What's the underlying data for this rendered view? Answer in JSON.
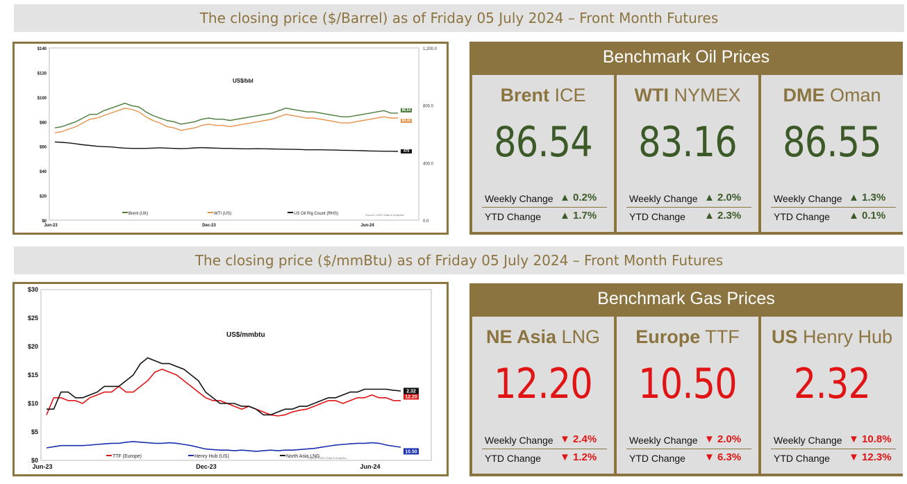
{
  "oil_banner": "The closing price ($/Barrel) as of Friday 05 July 2024 – Front Month  Futures",
  "gas_banner": "The closing price ($/mmBtu) as of Friday 05 July 2024 – Front Month  Futures",
  "oil_panel": {
    "title": "Benchmark Oil Prices",
    "tiles": [
      {
        "name_bold": "Brent",
        "name_rest": " ICE",
        "price": "86.54",
        "weekly_label": "Weekly Change",
        "weekly": "▲ 0.2%",
        "ytd_label": "YTD Change",
        "ytd": "▲ 1.7%"
      },
      {
        "name_bold": "WTI",
        "name_rest": " NYMEX",
        "price": "83.16",
        "weekly_label": "Weekly Change",
        "weekly": "▲ 2.0%",
        "ytd_label": "YTD Change",
        "ytd": "▲ 2.3%"
      },
      {
        "name_bold": "DME",
        "name_rest": " Oman",
        "price": "86.55",
        "weekly_label": "Weekly Change",
        "weekly": "▲ 1.3%",
        "ytd_label": "YTD Change",
        "ytd": "▲ 0.1%"
      }
    ]
  },
  "gas_panel": {
    "title": "Benchmark Gas Prices",
    "tiles": [
      {
        "name_bold": "NE Asia",
        "name_rest": " LNG",
        "price": "12.20",
        "weekly_label": "Weekly Change",
        "weekly": "▼ 2.4%",
        "ytd_label": "YTD Change",
        "ytd": "▼ 1.2%"
      },
      {
        "name_bold": "Europe",
        "name_rest": " TTF",
        "price": "10.50",
        "weekly_label": "Weekly Change",
        "weekly": "▼ 2.0%",
        "ytd_label": "YTD Change",
        "ytd": "▼ 6.3%"
      },
      {
        "name_bold": "US",
        "name_rest": " Henry Hub",
        "price": "2.32",
        "weekly_label": "Weekly Change",
        "weekly": "▼ 10.8%",
        "ytd_label": "YTD Change",
        "ytd": "▼ 12.3%"
      }
    ]
  },
  "chart_data": [
    {
      "type": "line",
      "title": "US$/bbl",
      "x_tick_labels": [
        "Jun-23",
        "Dec-23",
        "Jun-24"
      ],
      "ylim": [
        0,
        140
      ],
      "y_ticks": [
        "$0",
        "$20",
        "$40",
        "$60",
        "$80",
        "$100",
        "$120",
        "$140"
      ],
      "y2lim": [
        0,
        1200
      ],
      "y2_ticks": [
        "0.0",
        "400.0",
        "800.0",
        "1,200.0"
      ],
      "source_note": "Source: LSEG Data & Analytics",
      "legend_position": "bottom",
      "grid": false,
      "end_labels": [
        "86.54",
        "83.16",
        "479"
      ],
      "series": [
        {
          "name": "Brent (UK)",
          "axis": "left",
          "color": "#4a7c3a",
          "values": [
            75,
            76,
            78,
            80,
            83,
            86,
            86,
            89,
            91,
            93,
            95,
            93,
            92,
            88,
            85,
            83,
            81,
            80,
            78,
            79,
            80,
            82,
            83,
            82,
            82,
            81,
            82,
            83,
            84,
            85,
            86,
            87,
            89,
            91,
            90,
            89,
            88,
            88,
            87,
            86,
            85,
            84,
            84,
            85,
            86,
            87,
            88,
            89,
            87,
            87
          ]
        },
        {
          "name": "WTI (US)",
          "axis": "left",
          "color": "#e8924a",
          "values": [
            71,
            72,
            74,
            76,
            79,
            82,
            83,
            85,
            87,
            89,
            91,
            90,
            88,
            84,
            81,
            79,
            76,
            75,
            73,
            74,
            75,
            77,
            78,
            77,
            77,
            76,
            77,
            78,
            79,
            80,
            81,
            82,
            84,
            86,
            85,
            84,
            83,
            83,
            82,
            81,
            80,
            79,
            79,
            80,
            81,
            82,
            83,
            84,
            83,
            83
          ]
        },
        {
          "name": "US Oil Rig Count (RHS)",
          "axis": "right",
          "color": "#111111",
          "values": [
            545,
            542,
            538,
            532,
            525,
            520,
            515,
            512,
            510,
            505,
            502,
            500,
            500,
            500,
            502,
            504,
            502,
            500,
            498,
            500,
            503,
            505,
            503,
            502,
            500,
            500,
            498,
            497,
            497,
            498,
            497,
            496,
            495,
            494,
            493,
            492,
            490,
            490,
            490,
            489,
            488,
            487,
            486,
            485,
            484,
            482,
            481,
            480,
            480,
            479
          ]
        }
      ]
    },
    {
      "type": "line",
      "title": "US$/mmbtu",
      "x_tick_labels": [
        "Jun-23",
        "Dec-23",
        "Jun-24"
      ],
      "ylim": [
        0,
        30
      ],
      "y_ticks": [
        "$0",
        "$5",
        "$10",
        "$15",
        "$20",
        "$25",
        "$30"
      ],
      "source_note": "Source: LSEG Data & Analytics",
      "legend_position": "bottom",
      "grid": false,
      "end_labels": [
        "12.20",
        "10.50",
        "2.32"
      ],
      "series": [
        {
          "name": "TTF (Europe)",
          "color": "#e01414",
          "values": [
            8,
            11,
            11,
            10.5,
            10.5,
            10,
            11,
            11.5,
            12,
            12,
            13,
            12,
            12,
            13,
            14,
            15.5,
            16,
            15.5,
            15,
            14,
            13,
            12,
            11,
            10.5,
            10.5,
            10,
            9.5,
            9,
            9.5,
            9,
            8.5,
            8,
            7.8,
            8,
            8.5,
            8.8,
            9,
            9.5,
            10,
            10.5,
            10.5,
            10,
            10.5,
            11,
            11,
            11.5,
            11,
            11,
            10.5,
            10.5
          ]
        },
        {
          "name": "Henry Hub (US)",
          "color": "#1a2fb0",
          "values": [
            2.2,
            2.4,
            2.6,
            2.6,
            2.6,
            2.6,
            2.7,
            2.8,
            2.9,
            3,
            3,
            3.2,
            3.3,
            3.2,
            3.1,
            3.0,
            3.0,
            3.1,
            3.0,
            2.8,
            2.6,
            2.3,
            2.0,
            1.9,
            1.8,
            1.8,
            1.7,
            1.8,
            1.7,
            1.6,
            1.7,
            1.8,
            1.7,
            1.8,
            1.8,
            1.9,
            2.0,
            2.1,
            2.3,
            2.5,
            2.7,
            2.8,
            2.9,
            3.0,
            3.0,
            3.1,
            3.0,
            2.7,
            2.5,
            2.32
          ]
        },
        {
          "name": "North Asia LNG",
          "color": "#111111",
          "values": [
            9,
            9,
            12,
            12,
            11,
            11,
            11.5,
            12,
            13,
            13,
            13,
            14,
            15,
            17,
            18,
            17.5,
            17,
            17,
            16.5,
            16,
            15,
            14,
            12,
            11,
            10,
            10,
            10,
            9.5,
            9.5,
            9,
            8,
            8,
            8.5,
            9,
            9,
            9.5,
            9.5,
            10,
            10.5,
            11,
            11,
            11.5,
            12,
            12,
            12.5,
            12.5,
            12.5,
            12.5,
            12.3,
            12.2
          ]
        }
      ]
    }
  ]
}
